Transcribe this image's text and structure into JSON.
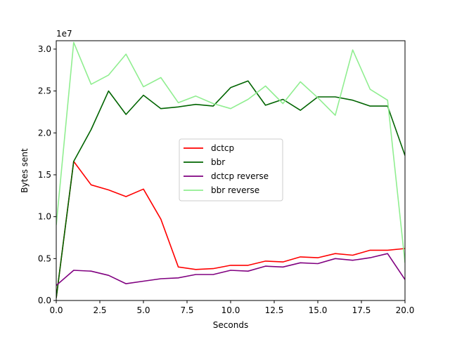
{
  "chart_data": {
    "type": "line",
    "xlabel": "Seconds",
    "ylabel": "Bytes sent",
    "y_offset_label": "1e7",
    "xlim": [
      0,
      20
    ],
    "ylim": [
      0,
      3.1
    ],
    "y_scale_factor": 10000000,
    "x_ticks": [
      "0.0",
      "2.5",
      "5.0",
      "7.5",
      "10.0",
      "12.5",
      "15.0",
      "17.5",
      "20.0"
    ],
    "y_ticks": [
      "0.0",
      "0.5",
      "1.0",
      "1.5",
      "2.0",
      "2.5",
      "3.0"
    ],
    "legend_position": "center",
    "x": [
      0,
      1,
      2,
      3,
      4,
      5,
      6,
      7,
      8,
      9,
      10,
      11,
      12,
      13,
      14,
      15,
      16,
      17,
      18,
      19,
      20
    ],
    "series": [
      {
        "name": "dctcp",
        "color": "#ff0000",
        "values": [
          0.03,
          1.66,
          1.38,
          1.32,
          1.24,
          1.33,
          0.97,
          0.4,
          0.37,
          0.38,
          0.42,
          0.42,
          0.47,
          0.46,
          0.52,
          0.51,
          0.56,
          0.54,
          0.6,
          0.6,
          0.62
        ]
      },
      {
        "name": "bbr",
        "color": "#006400",
        "values": [
          0.03,
          1.66,
          2.04,
          2.5,
          2.22,
          2.45,
          2.29,
          2.31,
          2.34,
          2.32,
          2.54,
          2.62,
          2.33,
          2.4,
          2.27,
          2.43,
          2.43,
          2.39,
          2.32,
          2.32,
          1.73
        ]
      },
      {
        "name": "dctcp reverse",
        "color": "#800080",
        "values": [
          0.18,
          0.36,
          0.35,
          0.3,
          0.2,
          0.23,
          0.26,
          0.27,
          0.31,
          0.31,
          0.36,
          0.35,
          0.41,
          0.4,
          0.45,
          0.44,
          0.5,
          0.48,
          0.51,
          0.56,
          0.25
        ]
      },
      {
        "name": "bbr reverse",
        "color": "#90ee90",
        "values": [
          0.9,
          3.08,
          2.58,
          2.69,
          2.94,
          2.55,
          2.66,
          2.36,
          2.44,
          2.35,
          2.29,
          2.4,
          2.56,
          2.35,
          2.61,
          2.42,
          2.21,
          2.99,
          2.52,
          2.39,
          0.45
        ]
      }
    ]
  }
}
